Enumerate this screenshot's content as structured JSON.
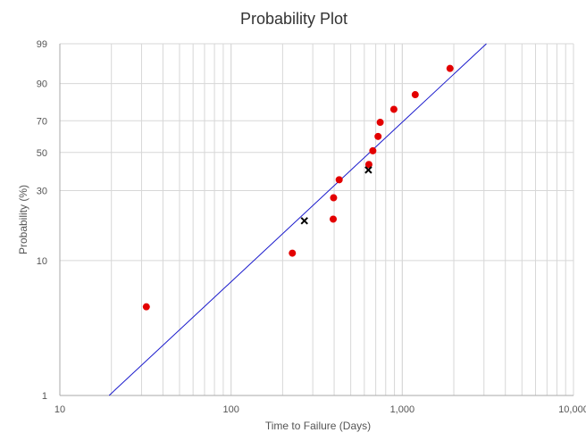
{
  "chart_data": {
    "type": "scatter",
    "title": "Probability Plot",
    "xlabel": "Time to Failure (Days)",
    "ylabel": "Probability (%)",
    "x_scale": "log",
    "y_scale": "weibull-probability",
    "xlim": [
      10,
      10000
    ],
    "ylim": [
      1,
      99
    ],
    "x_ticks": [
      {
        "value": 10,
        "label": "10"
      },
      {
        "value": 100,
        "label": "100"
      },
      {
        "value": 1000,
        "label": "1,000"
      },
      {
        "value": 10000,
        "label": "10,000"
      }
    ],
    "y_ticks": [
      {
        "value": 1,
        "label": "1"
      },
      {
        "value": 10,
        "label": "10"
      },
      {
        "value": 30,
        "label": "30"
      },
      {
        "value": 50,
        "label": "50"
      },
      {
        "value": 70,
        "label": "70"
      },
      {
        "value": 90,
        "label": "90"
      },
      {
        "value": 99,
        "label": "99"
      }
    ],
    "grid": true,
    "series": [
      {
        "marker": "circle",
        "color": "#e30000",
        "points": [
          {
            "x": 32,
            "y": 4.6
          },
          {
            "x": 228,
            "y": 11.3
          },
          {
            "x": 395,
            "y": 19.5
          },
          {
            "x": 397,
            "y": 27
          },
          {
            "x": 428,
            "y": 35
          },
          {
            "x": 638,
            "y": 43
          },
          {
            "x": 673,
            "y": 51
          },
          {
            "x": 722,
            "y": 60
          },
          {
            "x": 743,
            "y": 69
          },
          {
            "x": 893,
            "y": 77
          },
          {
            "x": 1190,
            "y": 85
          },
          {
            "x": 1900,
            "y": 95
          }
        ]
      },
      {
        "marker": "x",
        "color": "#000000",
        "points": [
          {
            "x": 268,
            "y": 19
          },
          {
            "x": 634,
            "y": 40
          }
        ]
      },
      {
        "type": "line",
        "color": "#1a1acc",
        "points": [
          {
            "x": 19.4,
            "y": 1
          },
          {
            "x": 3100,
            "y": 99
          }
        ]
      }
    ]
  }
}
